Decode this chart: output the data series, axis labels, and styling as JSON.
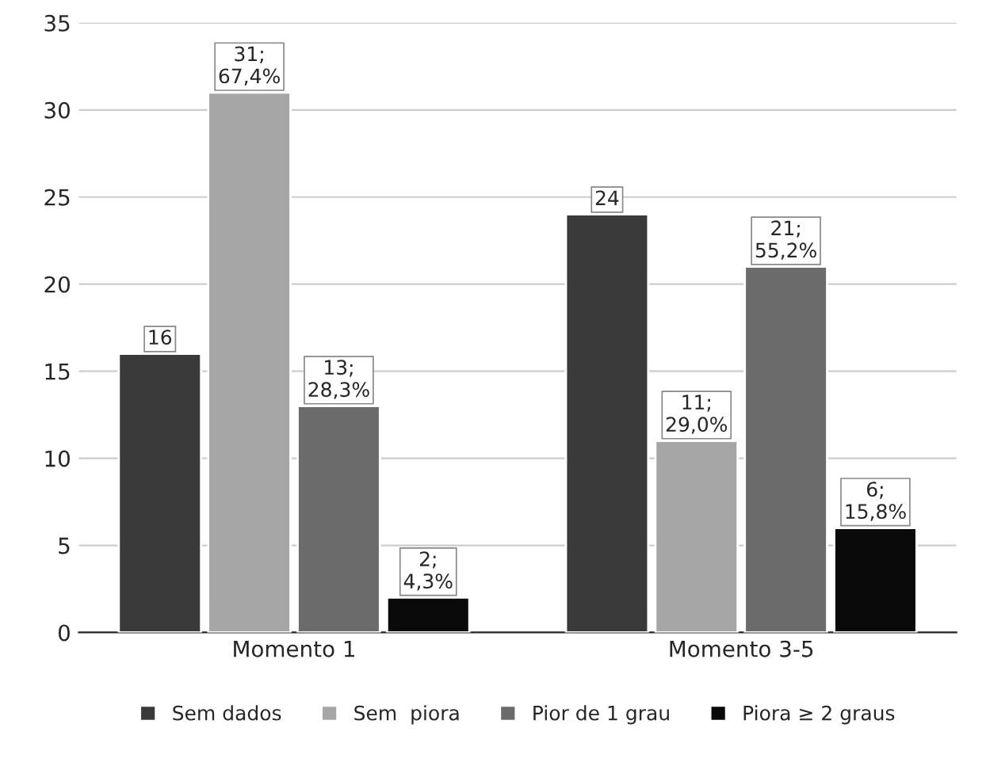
{
  "chart_data": {
    "type": "bar",
    "categories": [
      "Momento 1",
      "Momento 3-5"
    ],
    "series": [
      {
        "name": "Sem dados",
        "color": "#3a3a3a",
        "values": [
          16,
          24
        ],
        "value_labels": [
          "16",
          "24"
        ]
      },
      {
        "name": "Sem  piora",
        "color": "#a6a6a6",
        "values": [
          31,
          11
        ],
        "value_labels": [
          "31;\n67,4%",
          "11;\n29,0%"
        ]
      },
      {
        "name": "Pior de 1 grau",
        "color": "#6b6b6b",
        "values": [
          13,
          21
        ],
        "value_labels": [
          "13;\n28,3%",
          "21;\n55,2%"
        ]
      },
      {
        "name": "Piora ≥ 2 graus",
        "color": "#0a0a0a",
        "values": [
          2,
          6
        ],
        "value_labels": [
          "2;\n4,3%",
          "6;\n15,8%"
        ]
      }
    ],
    "ylim": [
      0,
      35
    ],
    "yticks": [
      0,
      5,
      10,
      15,
      20,
      25,
      30,
      35
    ],
    "grid": "y",
    "legend": "bottom"
  }
}
